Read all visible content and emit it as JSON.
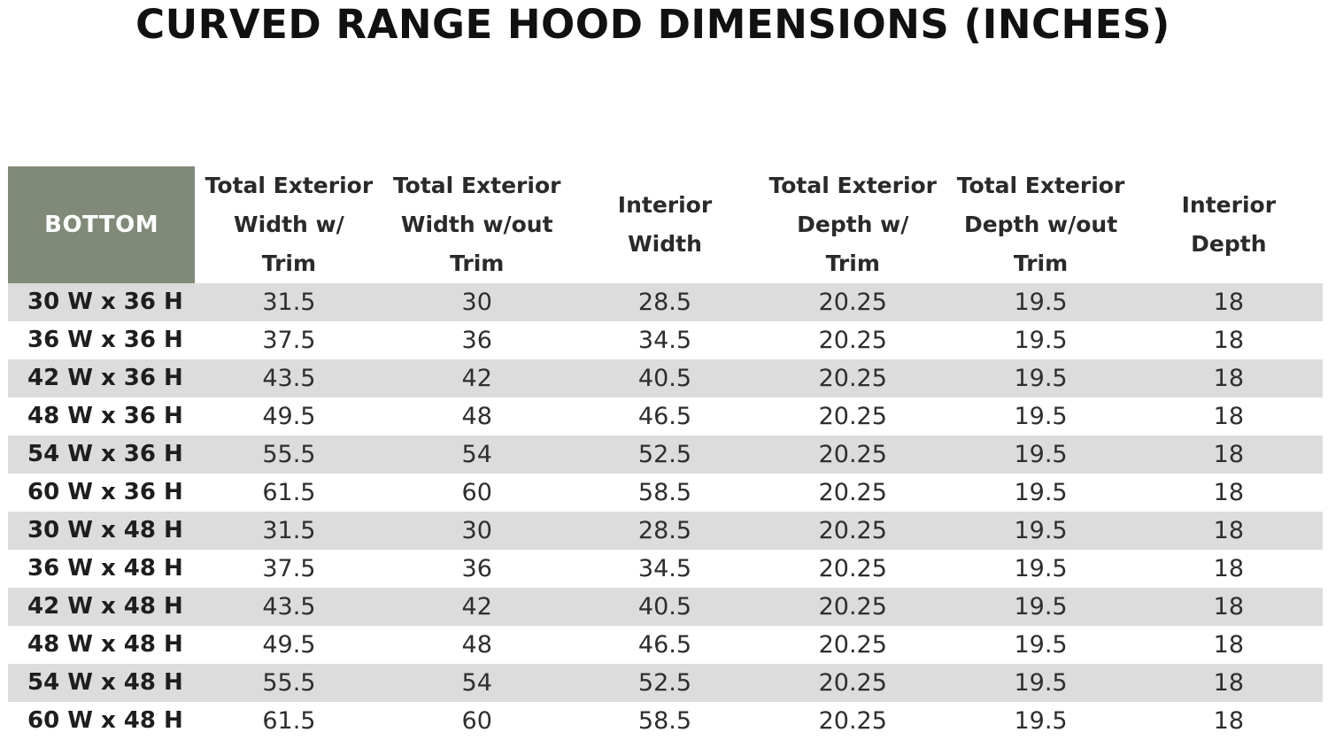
{
  "title": "CURVED RANGE HOOD DIMENSIONS (INCHES)",
  "colors": {
    "header_corner": "#818a78",
    "row_shade": "#dcdcdc"
  },
  "chart_data": {
    "type": "table",
    "title": "CURVED RANGE HOOD DIMENSIONS (INCHES)",
    "columns": [
      "BOTTOM",
      "Total Exterior\nWidth w/\nTrim",
      "Total Exterior\nWidth w/out\nTrim",
      "Interior\nWidth",
      "Total Exterior\nDepth w/\nTrim",
      "Total Exterior\nDepth w/out\nTrim",
      "Interior\nDepth"
    ],
    "rows": [
      [
        "30 W x 36 H",
        "31.5",
        "30",
        "28.5",
        "20.25",
        "19.5",
        "18"
      ],
      [
        "36 W x 36 H",
        "37.5",
        "36",
        "34.5",
        "20.25",
        "19.5",
        "18"
      ],
      [
        "42 W x 36 H",
        "43.5",
        "42",
        "40.5",
        "20.25",
        "19.5",
        "18"
      ],
      [
        "48 W x 36 H",
        "49.5",
        "48",
        "46.5",
        "20.25",
        "19.5",
        "18"
      ],
      [
        "54 W x 36 H",
        "55.5",
        "54",
        "52.5",
        "20.25",
        "19.5",
        "18"
      ],
      [
        "60 W x 36 H",
        "61.5",
        "60",
        "58.5",
        "20.25",
        "19.5",
        "18"
      ],
      [
        "30 W x 48 H",
        "31.5",
        "30",
        "28.5",
        "20.25",
        "19.5",
        "18"
      ],
      [
        "36 W x 48 H",
        "37.5",
        "36",
        "34.5",
        "20.25",
        "19.5",
        "18"
      ],
      [
        "42 W x 48 H",
        "43.5",
        "42",
        "40.5",
        "20.25",
        "19.5",
        "18"
      ],
      [
        "48 W x 48 H",
        "49.5",
        "48",
        "46.5",
        "20.25",
        "19.5",
        "18"
      ],
      [
        "54 W x 48 H",
        "55.5",
        "54",
        "52.5",
        "20.25",
        "19.5",
        "18"
      ],
      [
        "60 W x 48 H",
        "61.5",
        "60",
        "58.5",
        "20.25",
        "19.5",
        "18"
      ]
    ]
  }
}
